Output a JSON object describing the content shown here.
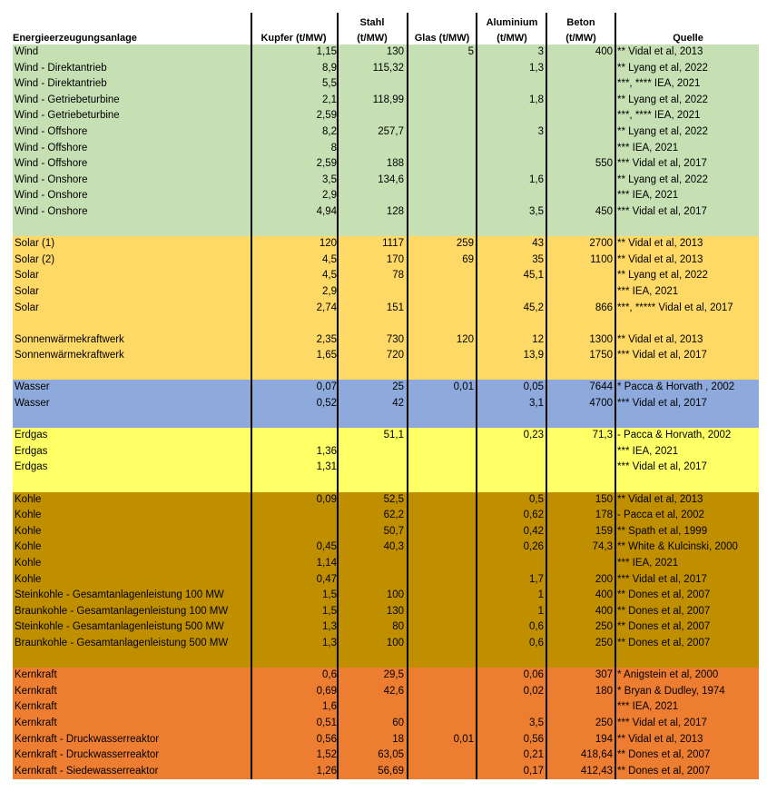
{
  "headers": {
    "anlage": "Energieerzeugungsanlage",
    "kupfer": "Kupfer (t/MW)",
    "stahl_1": "Stahl",
    "stahl_2": "(t/MW)",
    "glas": "Glas (t/MW)",
    "alu_1": "Aluminium",
    "alu_2": "(t/MW)",
    "beton_1": "Beton",
    "beton_2": "(t/MW)",
    "quelle": "Quelle"
  },
  "colors": {
    "wind": "#c6e0b4",
    "solar": "#ffd966",
    "wasser": "#8ea9db",
    "erdgas": "#ffff66",
    "kohle": "#bf8f00",
    "kernkraft": "#ed7d31"
  },
  "groups": [
    {
      "key": "wind",
      "rows": [
        [
          "Wind",
          "1,15",
          "130",
          "5",
          "3",
          "400",
          "** Vidal et al, 2013"
        ],
        [
          "Wind - Direktantrieb",
          "8,9",
          "115,32",
          "",
          "1,3",
          "",
          "** Lyang et al, 2022"
        ],
        [
          "Wind - Direktantrieb",
          "5,5",
          "",
          "",
          "",
          "",
          "***, **** IEA, 2021"
        ],
        [
          "Wind - Getriebeturbine",
          "2,1",
          "118,99",
          "",
          "1,8",
          "",
          "** Lyang et al, 2022"
        ],
        [
          "Wind - Getriebeturbine",
          "2,59",
          "",
          "",
          "",
          "",
          "***, **** IEA, 2021"
        ],
        [
          "Wind - Offshore",
          "8,2",
          "257,7",
          "",
          "3",
          "",
          "** Lyang et al, 2022"
        ],
        [
          "Wind - Offshore",
          "8",
          "",
          "",
          "",
          "",
          "*** IEA, 2021"
        ],
        [
          "Wind - Offshore",
          "2,59",
          "188",
          "",
          "",
          "550",
          "*** Vidal et al, 2017"
        ],
        [
          "Wind - Onshore",
          "3,5",
          "134,6",
          "",
          "1,6",
          "",
          "** Lyang et al, 2022"
        ],
        [
          "Wind - Onshore",
          "2,9",
          "",
          "",
          "",
          "",
          "*** IEA, 2021"
        ],
        [
          "Wind - Onshore",
          "4,94",
          "128",
          "",
          "3,5",
          "450",
          "*** Vidal et al, 2017"
        ],
        [
          "",
          "",
          "",
          "",
          "",
          "",
          ""
        ]
      ]
    },
    {
      "key": "solar",
      "rows": [
        [
          "Solar (1)",
          "120",
          "1117",
          "259",
          "43",
          "2700",
          "** Vidal et al, 2013"
        ],
        [
          "Solar (2)",
          "4,5",
          "170",
          "69",
          "35",
          "1100",
          "** Vidal et al, 2013"
        ],
        [
          "Solar",
          "4,5",
          "78",
          "",
          "45,1",
          "",
          "** Lyang et al, 2022"
        ],
        [
          "Solar",
          "2,9",
          "",
          "",
          "",
          "",
          "*** IEA, 2021"
        ],
        [
          "Solar",
          "2,74",
          "151",
          "",
          "45,2",
          "866",
          "***, ***** Vidal et al, 2017"
        ],
        [
          "",
          "",
          "",
          "",
          "",
          "",
          ""
        ],
        [
          "Sonnenwärmekraftwerk",
          "2,35",
          "730",
          "120",
          "12",
          "1300",
          "** Vidal et al, 2013"
        ],
        [
          "Sonnenwärmekraftwerk",
          "1,65",
          "720",
          "",
          "13,9",
          "1750",
          "*** Vidal et al, 2017"
        ],
        [
          "",
          "",
          "",
          "",
          "",
          "",
          ""
        ]
      ]
    },
    {
      "key": "wasser",
      "rows": [
        [
          "Wasser",
          "0,07",
          "25",
          "0,01",
          "0,05",
          "7644",
          "* Pacca & Horvath , 2002"
        ],
        [
          "Wasser",
          "0,52",
          "42",
          "",
          "3,1",
          "4700",
          "*** Vidal et al, 2017"
        ],
        [
          "",
          "",
          "",
          "",
          "",
          "",
          ""
        ]
      ]
    },
    {
      "key": "erdgas",
      "rows": [
        [
          "Erdgas",
          "",
          "51,1",
          "",
          "0,23",
          "71,3",
          " - Pacca & Horvath, 2002"
        ],
        [
          "Erdgas",
          "1,36",
          "",
          "",
          "",
          "",
          "*** IEA, 2021"
        ],
        [
          "Erdgas",
          "1,31",
          "",
          "",
          "",
          "",
          "*** Vidal et al, 2017"
        ],
        [
          "",
          "",
          "",
          "",
          "",
          "",
          ""
        ]
      ]
    },
    {
      "key": "kohle",
      "rows": [
        [
          "Kohle",
          "0,09",
          "52,5",
          "",
          "0,5",
          "150",
          "** Vidal et al, 2013"
        ],
        [
          "Kohle",
          "",
          "62,2",
          "",
          "0,62",
          "178",
          " - Pacca et al, 2002"
        ],
        [
          "Kohle",
          "",
          "50,7",
          "",
          "0,42",
          "159",
          "** Spath et al, 1999"
        ],
        [
          "Kohle",
          "0,45",
          "40,3",
          "",
          "0,26",
          "74,3",
          "** White & Kulcinski, 2000"
        ],
        [
          "Kohle",
          "1,14",
          "",
          "",
          "",
          "",
          "*** IEA, 2021"
        ],
        [
          "Kohle",
          "0,47",
          "",
          "",
          "1,7",
          "200",
          "*** Vidal et al, 2017"
        ],
        [
          "Steinkohle - Gesamtanlagenleistung 100 MW",
          "1,5",
          "100",
          "",
          "1",
          "400",
          "** Dones et al, 2007"
        ],
        [
          "Braunkohle - Gesamtanlagenleistung 100 MW",
          "1,5",
          "130",
          "",
          "1",
          "400",
          "** Dones et al, 2007"
        ],
        [
          "Steinkohle - Gesamtanlagenleistung 500 MW",
          "1,3",
          "80",
          "",
          "0,6",
          "250",
          "** Dones et al, 2007"
        ],
        [
          "Braunkohle - Gesamtanlagenleistung 500 MW",
          "1,3",
          "100",
          "",
          "0,6",
          "250",
          "** Dones et al, 2007"
        ],
        [
          "",
          "",
          "",
          "",
          "",
          "",
          ""
        ]
      ]
    },
    {
      "key": "kernkraft",
      "rows": [
        [
          "Kernkraft",
          "0,6",
          "29,5",
          "",
          "0,06",
          "307",
          "* Anigstein et al, 2000"
        ],
        [
          "Kernkraft",
          "0,69",
          "42,6",
          "",
          "0,02",
          "180",
          "* Bryan & Dudley, 1974"
        ],
        [
          "Kernkraft",
          "1,6",
          "",
          "",
          "",
          "",
          "*** IEA, 2021"
        ],
        [
          "Kernkraft",
          "0,51",
          "60",
          "",
          "3,5",
          "250",
          "*** Vidal et al, 2017"
        ],
        [
          "Kernkraft - Druckwasserreaktor",
          "0,56",
          "18",
          "0,01",
          "0,56",
          "194",
          "** Vidal et al, 2013"
        ],
        [
          "Kernkraft - Druckwasserreaktor",
          "1,52",
          "63,05",
          "",
          "0,21",
          "418,64",
          "** Dones et al, 2007"
        ],
        [
          "Kernkraft - Siedewasserreaktor",
          "1,26",
          "56,69",
          "",
          "0,17",
          "412,43",
          "** Dones et al, 2007"
        ]
      ]
    }
  ]
}
